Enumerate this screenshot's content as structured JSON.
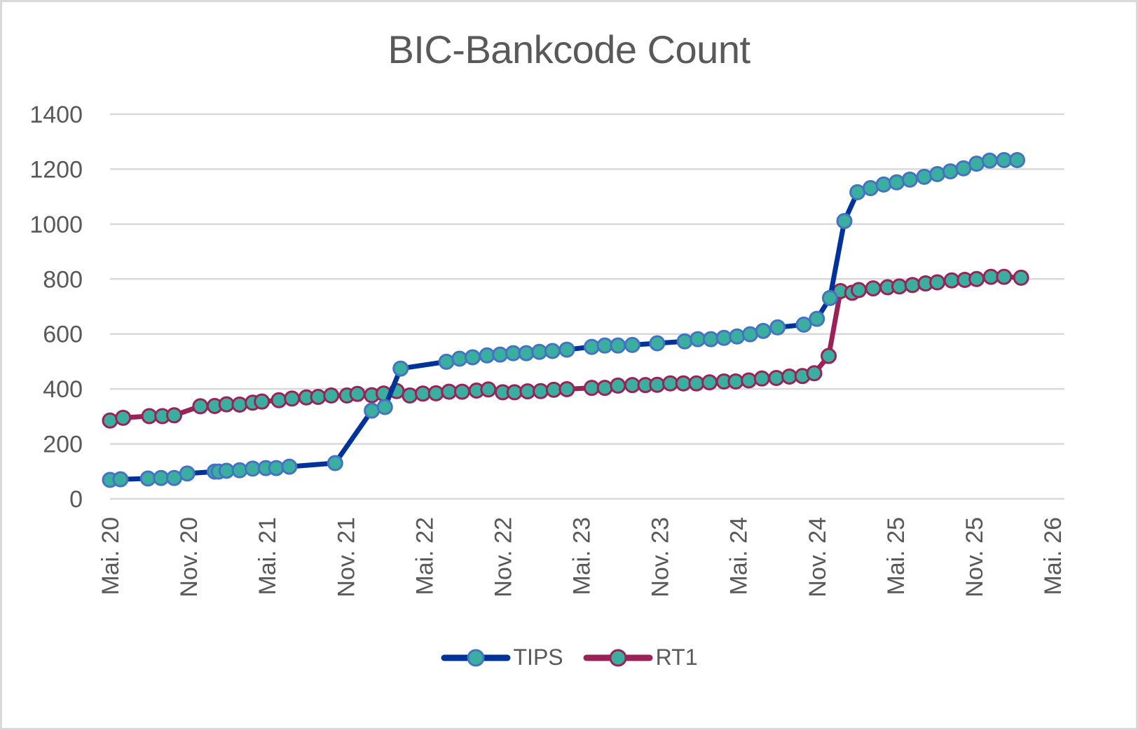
{
  "chart_data": {
    "type": "line",
    "title": "BIC-Bankcode Count",
    "xlabel": "",
    "ylabel": "",
    "ylim": [
      0,
      1400
    ],
    "yticks": [
      0,
      200,
      400,
      600,
      800,
      1000,
      1200,
      1400
    ],
    "xticks": [
      "Mai. 20",
      "Nov. 20",
      "Mai. 21",
      "Nov. 21",
      "Mai. 22",
      "Nov. 22",
      "Mai. 23",
      "Nov. 23",
      "Mai. 24",
      "Nov. 24",
      "Mai. 25",
      "Nov. 25",
      "Mai. 26"
    ],
    "grid": true,
    "legend_position": "bottom",
    "x_unit": "months since Mai. 20",
    "series": [
      {
        "name": "TIPS",
        "line_color": "#003399",
        "marker_fill": "#3aafa0",
        "marker_edge": "#4472c4",
        "points": [
          [
            0.0,
            69
          ],
          [
            0.8,
            71
          ],
          [
            2.9,
            74
          ],
          [
            3.9,
            76
          ],
          [
            4.9,
            76
          ],
          [
            5.9,
            92
          ],
          [
            8.0,
            99
          ],
          [
            8.3,
            99
          ],
          [
            8.9,
            102
          ],
          [
            9.9,
            104
          ],
          [
            10.9,
            110
          ],
          [
            11.9,
            112
          ],
          [
            12.7,
            112
          ],
          [
            13.7,
            117
          ],
          [
            17.2,
            130
          ],
          [
            20.0,
            321
          ],
          [
            21.0,
            334
          ],
          [
            22.2,
            474
          ],
          [
            25.7,
            499
          ],
          [
            26.7,
            510
          ],
          [
            27.7,
            515
          ],
          [
            28.8,
            522
          ],
          [
            29.8,
            525
          ],
          [
            30.8,
            530
          ],
          [
            31.8,
            530
          ],
          [
            32.8,
            535
          ],
          [
            33.8,
            538
          ],
          [
            34.9,
            543
          ],
          [
            36.8,
            553
          ],
          [
            37.8,
            558
          ],
          [
            38.8,
            558
          ],
          [
            39.9,
            560
          ],
          [
            41.8,
            566
          ],
          [
            43.9,
            573
          ],
          [
            44.9,
            581
          ],
          [
            45.9,
            581
          ],
          [
            46.9,
            586
          ],
          [
            47.9,
            591
          ],
          [
            48.9,
            599
          ],
          [
            49.9,
            611
          ],
          [
            51.0,
            624
          ],
          [
            53.0,
            634
          ],
          [
            54.0,
            655
          ],
          [
            55.0,
            731
          ],
          [
            56.1,
            1011
          ],
          [
            57.1,
            1116
          ],
          [
            58.1,
            1131
          ],
          [
            59.1,
            1144
          ],
          [
            60.1,
            1152
          ],
          [
            61.1,
            1162
          ],
          [
            62.2,
            1172
          ],
          [
            63.2,
            1182
          ],
          [
            64.2,
            1192
          ],
          [
            65.2,
            1203
          ],
          [
            66.2,
            1220
          ],
          [
            67.2,
            1231
          ],
          [
            68.3,
            1233
          ],
          [
            69.3,
            1233
          ]
        ]
      },
      {
        "name": "RT1",
        "line_color": "#9b2257",
        "marker_fill": "#3aafa0",
        "marker_edge": "#9b2257",
        "points": [
          [
            0.0,
            285
          ],
          [
            1.0,
            295
          ],
          [
            3.0,
            301
          ],
          [
            4.0,
            301
          ],
          [
            4.9,
            304
          ],
          [
            6.9,
            337
          ],
          [
            8.0,
            338
          ],
          [
            8.9,
            344
          ],
          [
            9.9,
            343
          ],
          [
            10.9,
            350
          ],
          [
            11.6,
            354
          ],
          [
            12.9,
            359
          ],
          [
            13.9,
            365
          ],
          [
            15.0,
            369
          ],
          [
            15.9,
            371
          ],
          [
            16.9,
            376
          ],
          [
            18.1,
            376
          ],
          [
            18.9,
            382
          ],
          [
            20.0,
            377
          ],
          [
            20.9,
            383
          ],
          [
            21.9,
            392
          ],
          [
            22.9,
            376
          ],
          [
            23.9,
            383
          ],
          [
            24.9,
            384
          ],
          [
            25.9,
            390
          ],
          [
            26.9,
            390
          ],
          [
            28.0,
            394
          ],
          [
            28.9,
            398
          ],
          [
            30.0,
            388
          ],
          [
            30.9,
            388
          ],
          [
            31.9,
            391
          ],
          [
            32.9,
            392
          ],
          [
            33.9,
            397
          ],
          [
            34.9,
            399
          ],
          [
            36.8,
            404
          ],
          [
            37.8,
            404
          ],
          [
            38.8,
            412
          ],
          [
            39.9,
            414
          ],
          [
            40.9,
            414
          ],
          [
            41.8,
            415
          ],
          [
            42.8,
            420
          ],
          [
            43.8,
            420
          ],
          [
            44.8,
            420
          ],
          [
            45.8,
            424
          ],
          [
            46.9,
            427
          ],
          [
            47.8,
            427
          ],
          [
            48.8,
            431
          ],
          [
            49.8,
            438
          ],
          [
            50.9,
            440
          ],
          [
            51.9,
            445
          ],
          [
            52.9,
            447
          ],
          [
            53.8,
            457
          ],
          [
            54.9,
            520
          ],
          [
            55.8,
            756
          ],
          [
            56.7,
            750
          ],
          [
            57.2,
            760
          ],
          [
            58.3,
            766
          ],
          [
            59.4,
            770
          ],
          [
            60.3,
            773
          ],
          [
            61.3,
            778
          ],
          [
            62.3,
            784
          ],
          [
            63.2,
            788
          ],
          [
            64.3,
            795
          ],
          [
            65.3,
            797
          ],
          [
            66.2,
            800
          ],
          [
            67.3,
            808
          ],
          [
            68.3,
            808
          ],
          [
            69.6,
            805
          ]
        ]
      }
    ]
  },
  "legend": {
    "items": [
      {
        "label": "TIPS",
        "line_color": "#003399",
        "marker_edge": "#4472c4",
        "marker_fill": "#3aafa0"
      },
      {
        "label": "RT1",
        "line_color": "#9b2257",
        "marker_edge": "#9b2257",
        "marker_fill": "#3aafa0"
      }
    ]
  },
  "colors": {
    "grid": "#d9d9d9",
    "text": "#595959",
    "border": "#d9d9d9"
  }
}
